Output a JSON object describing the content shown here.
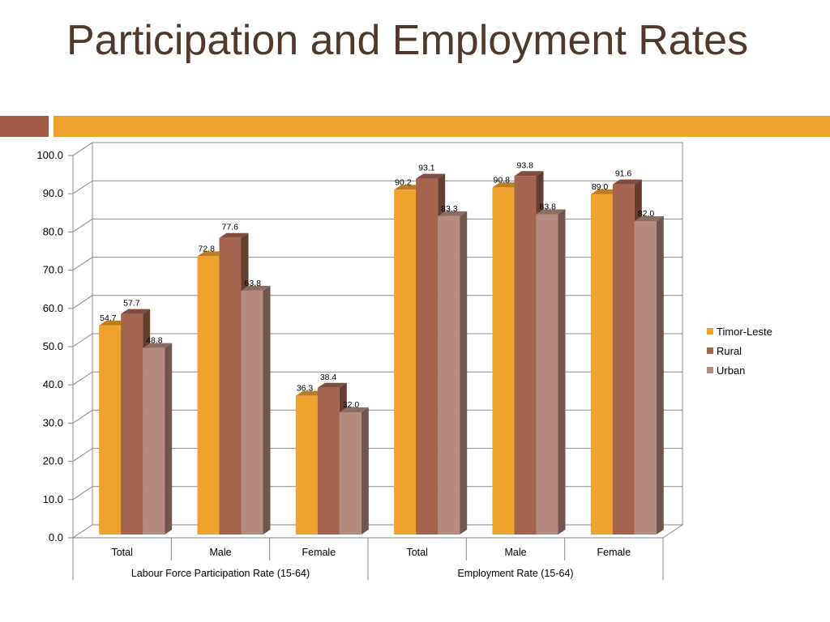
{
  "slide": {
    "title": "Participation and Employment Rates"
  },
  "chart_data": {
    "type": "bar",
    "ylim": [
      0,
      100
    ],
    "ytick_step": 10,
    "ytick_decimals": 1,
    "grid": true,
    "legend_position": "right",
    "categories": [
      "Total",
      "Male",
      "Female",
      "Total",
      "Male",
      "Female"
    ],
    "groups": [
      {
        "label": "Labour Force Participation Rate (15-64)",
        "size": 3
      },
      {
        "label": "Employment Rate (15-64)",
        "size": 3
      }
    ],
    "series": [
      {
        "name": "Timor-Leste",
        "color": "#f0a22e",
        "values": [
          54.7,
          72.8,
          36.3,
          90.2,
          90.8,
          89.0
        ]
      },
      {
        "name": "Rural",
        "color": "#a5644e",
        "values": [
          57.7,
          77.6,
          38.4,
          93.1,
          93.8,
          91.6
        ]
      },
      {
        "name": "Urban",
        "color": "#b58b80",
        "values": [
          48.8,
          63.8,
          32.0,
          83.3,
          83.8,
          82.0
        ]
      }
    ]
  }
}
